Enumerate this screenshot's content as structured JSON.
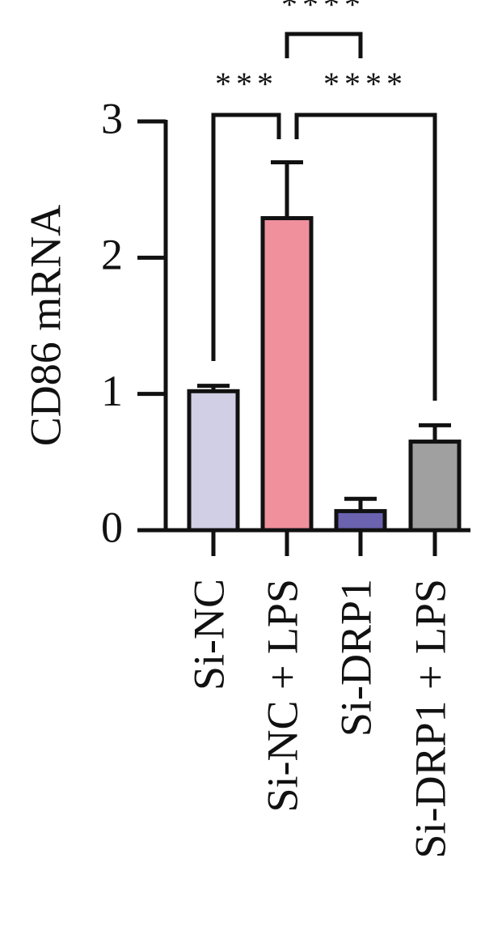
{
  "chart_data": {
    "type": "bar",
    "y_label": "CD86 mRNA",
    "categories": [
      "Si-NC",
      "Si-NC + LPS",
      "Si-DRP1",
      "Si-DRP1 + LPS"
    ],
    "values": [
      1.02,
      2.29,
      0.14,
      0.65
    ],
    "errors": [
      0.04,
      0.41,
      0.09,
      0.12
    ],
    "colors": [
      "#d0cfe6",
      "#f0909c",
      "#6b63b0",
      "#a0a0a0"
    ],
    "ylim": [
      0,
      3
    ],
    "yticks": [
      0,
      1,
      2,
      3
    ],
    "significance": [
      "***",
      "****",
      "****"
    ]
  }
}
